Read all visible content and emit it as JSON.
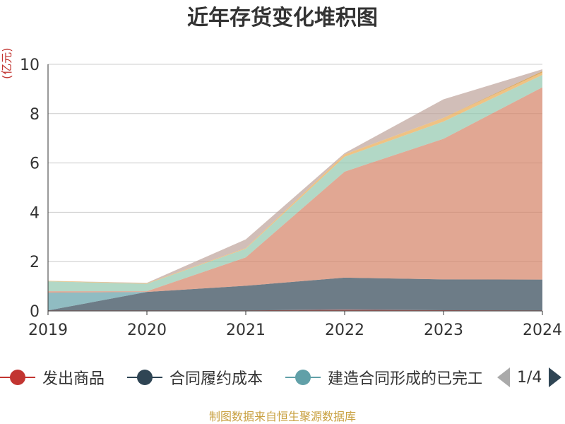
{
  "chart_data": {
    "type": "area",
    "title": "近年存货变化堆积图",
    "unit": "(亿元)",
    "categories": [
      "2019",
      "2020",
      "2021",
      "2022",
      "2023",
      "2024"
    ],
    "ylim": [
      0,
      10
    ],
    "yticks": [
      "0",
      "2",
      "4",
      "6",
      "8",
      "10"
    ],
    "stacked": true,
    "grid": true,
    "series": [
      {
        "name": "发出商品",
        "color": "#c23531",
        "values": [
          0.02,
          0.02,
          0.02,
          0.05,
          0.03,
          0.02
        ]
      },
      {
        "name": "合同履约成本",
        "color": "#2f4554",
        "values": [
          0.0,
          0.75,
          1.0,
          1.3,
          1.25,
          1.25
        ]
      },
      {
        "name": "建造合同形成的已完工未结算资产",
        "color": "#61a0a8",
        "values": [
          0.72,
          0.0,
          0.0,
          0.0,
          0.0,
          0.0
        ]
      },
      {
        "name": "",
        "color": "#d48265",
        "values": [
          0.06,
          0.03,
          1.15,
          4.3,
          5.7,
          7.8
        ]
      },
      {
        "name": "",
        "color": "#91c7ae",
        "values": [
          0.4,
          0.3,
          0.35,
          0.6,
          0.7,
          0.5
        ]
      },
      {
        "name": "",
        "color": "#e8a84e",
        "values": [
          0.02,
          0.02,
          0.03,
          0.1,
          0.15,
          0.1
        ]
      },
      {
        "name": "",
        "color": "#ca8622",
        "values": [
          0.0,
          0.0,
          0.0,
          0.0,
          0.0,
          0.05
        ]
      },
      {
        "name": "",
        "color": "#bda29a",
        "values": [
          0.0,
          0.02,
          0.35,
          0.05,
          0.75,
          0.08
        ]
      }
    ],
    "legend": {
      "position": "bottom",
      "page": "1/4",
      "visible_items": [
        {
          "label": "发出商品",
          "color": "#c23531"
        },
        {
          "label": "合同履约成本",
          "color": "#2f4554"
        },
        {
          "label": "建造合同形成的已完工未结算资产",
          "color": "#61a0a8"
        }
      ]
    }
  },
  "source_note": "制图数据来自恒生聚源数据库"
}
